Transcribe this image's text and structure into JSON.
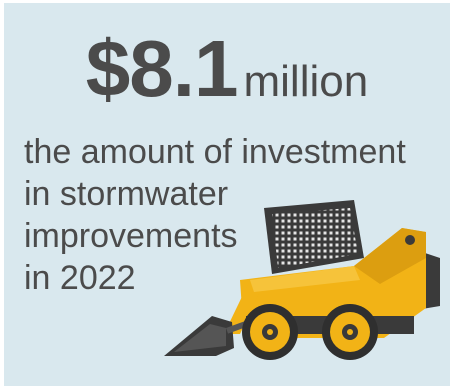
{
  "headline": {
    "amount": "$8.1",
    "unit": "million"
  },
  "description": {
    "line1": "the amount of investment",
    "line2": "in stormwater",
    "line3": "improvements",
    "line4": "in 2022"
  },
  "colors": {
    "background": "#d9e8ee",
    "text": "#4b4b4b",
    "machine_yellow": "#f2b316",
    "machine_dark": "#3a3a3a"
  },
  "illustration": "skid-steer-loader"
}
